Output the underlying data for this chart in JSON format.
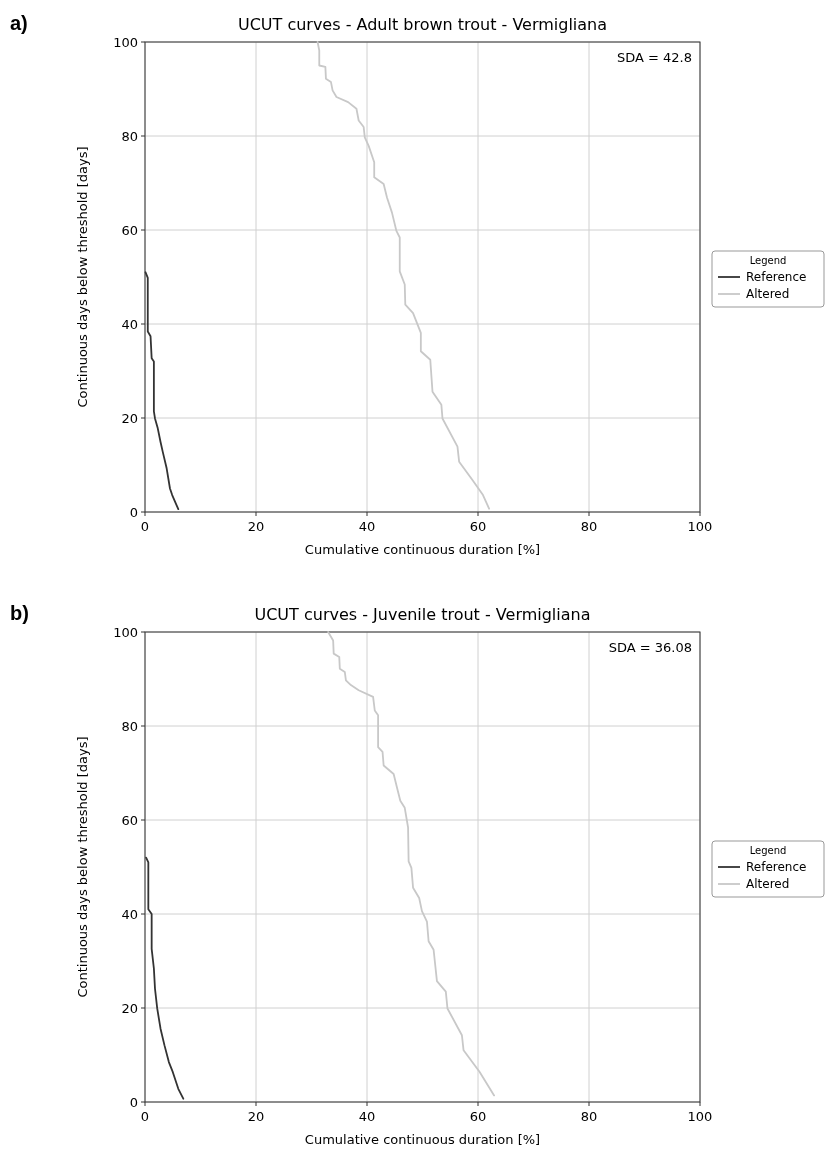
{
  "chart_data": [
    {
      "type": "line",
      "title": "UCUT curves - Adult brown trout - Vermigliana",
      "xlabel": "Cumulative continuous duration [%]",
      "ylabel": "Continuous days below threshold [days]",
      "legend_title": "Legend",
      "legend": "right",
      "grid": true,
      "xlim": [
        0,
        100
      ],
      "xticks": [
        0,
        20,
        40,
        60,
        80,
        100
      ],
      "ylim": [
        0,
        100
      ],
      "yticks": [
        0,
        20,
        40,
        60,
        80,
        100
      ],
      "annotations": [
        "a)",
        "SDA = 42.8"
      ],
      "series": [
        {
          "name": "Reference",
          "color": "#333333",
          "x": [
            0.1,
            0.5,
            0.5,
            1.0,
            1.2,
            1.6,
            1.6,
            1.8,
            2.3,
            2.8,
            3.2,
            3.9,
            4.5,
            4.9,
            5.7,
            6.0
          ],
          "values": [
            51,
            49.8,
            38.4,
            37.4,
            32.7,
            32,
            21.4,
            19.9,
            17.8,
            14.9,
            12.8,
            9.3,
            5.0,
            3.6,
            1.4,
            0.6
          ]
        },
        {
          "name": "Altered",
          "color": "#c8c8c8",
          "x": [
            31.1,
            31.4,
            31.4,
            32.5,
            32.6,
            33.5,
            33.8,
            34.5,
            36.6,
            38.1,
            38.5,
            39.4,
            39.6,
            40.3,
            41.3,
            41.3,
            43.0,
            43.6,
            44.5,
            45.3,
            45.9,
            45.9,
            46.8,
            46.9,
            48.3,
            49.7,
            49.7,
            51.4,
            51.8,
            53.4,
            53.6,
            56.3,
            56.6,
            59.0,
            60.9,
            62.0
          ],
          "values": [
            100,
            98.2,
            95,
            94.7,
            92.2,
            91.5,
            89.7,
            88.3,
            87.2,
            85.8,
            83.3,
            81.9,
            79.7,
            77.9,
            74.4,
            71.2,
            69.8,
            66.9,
            63.7,
            59.8,
            58.4,
            51.2,
            48.4,
            44.1,
            42.3,
            38.1,
            34.2,
            32.4,
            25.6,
            22.8,
            19.9,
            13.9,
            10.7,
            6.8,
            3.6,
            0.7
          ]
        }
      ]
    },
    {
      "type": "line",
      "title": "UCUT curves - Juvenile trout - Vermigliana",
      "xlabel": "Cumulative continuous duration [%]",
      "ylabel": "Continuous days below threshold [days]",
      "legend_title": "Legend",
      "legend": "right",
      "grid": true,
      "xlim": [
        0,
        100
      ],
      "xticks": [
        0,
        20,
        40,
        60,
        80,
        100
      ],
      "ylim": [
        0,
        100
      ],
      "yticks": [
        0,
        20,
        40,
        60,
        80,
        100
      ],
      "annotations": [
        "b)",
        "SDA = 36.08"
      ],
      "series": [
        {
          "name": "Reference",
          "color": "#333333",
          "x": [
            0.2,
            0.6,
            0.6,
            1.2,
            1.2,
            1.6,
            1.8,
            2.2,
            2.8,
            3.5,
            4.3,
            5.0,
            6.0,
            6.9
          ],
          "values": [
            52,
            51,
            41,
            40,
            32.6,
            28.4,
            24.1,
            19.9,
            15.6,
            12.1,
            8.5,
            6.4,
            2.8,
            0.7
          ]
        },
        {
          "name": "Altered",
          "color": "#c8c8c8",
          "x": [
            33.0,
            33.9,
            34.0,
            35.0,
            35.1,
            36.0,
            36.2,
            37.1,
            38.5,
            41.1,
            41.4,
            42.0,
            42.0,
            42.8,
            43.0,
            44.8,
            45.4,
            46.0,
            46.8,
            47.4,
            47.5,
            48.0,
            48.3,
            49.4,
            49.9,
            50.8,
            51.1,
            52.0,
            52.6,
            54.2,
            54.5,
            57.1,
            57.4,
            60.3,
            62.9
          ],
          "values": [
            100,
            98.2,
            95.4,
            94.7,
            92.2,
            91.5,
            89.7,
            88.7,
            87.6,
            86.2,
            83.3,
            82.3,
            75.5,
            74.5,
            71.6,
            69.8,
            66.9,
            64.1,
            62.6,
            58.4,
            51.2,
            49.8,
            45.6,
            43.4,
            40.6,
            38.4,
            34.2,
            32.4,
            25.7,
            23.5,
            19.9,
            14.2,
            11.0,
            6.4,
            1.4
          ]
        }
      ]
    }
  ]
}
